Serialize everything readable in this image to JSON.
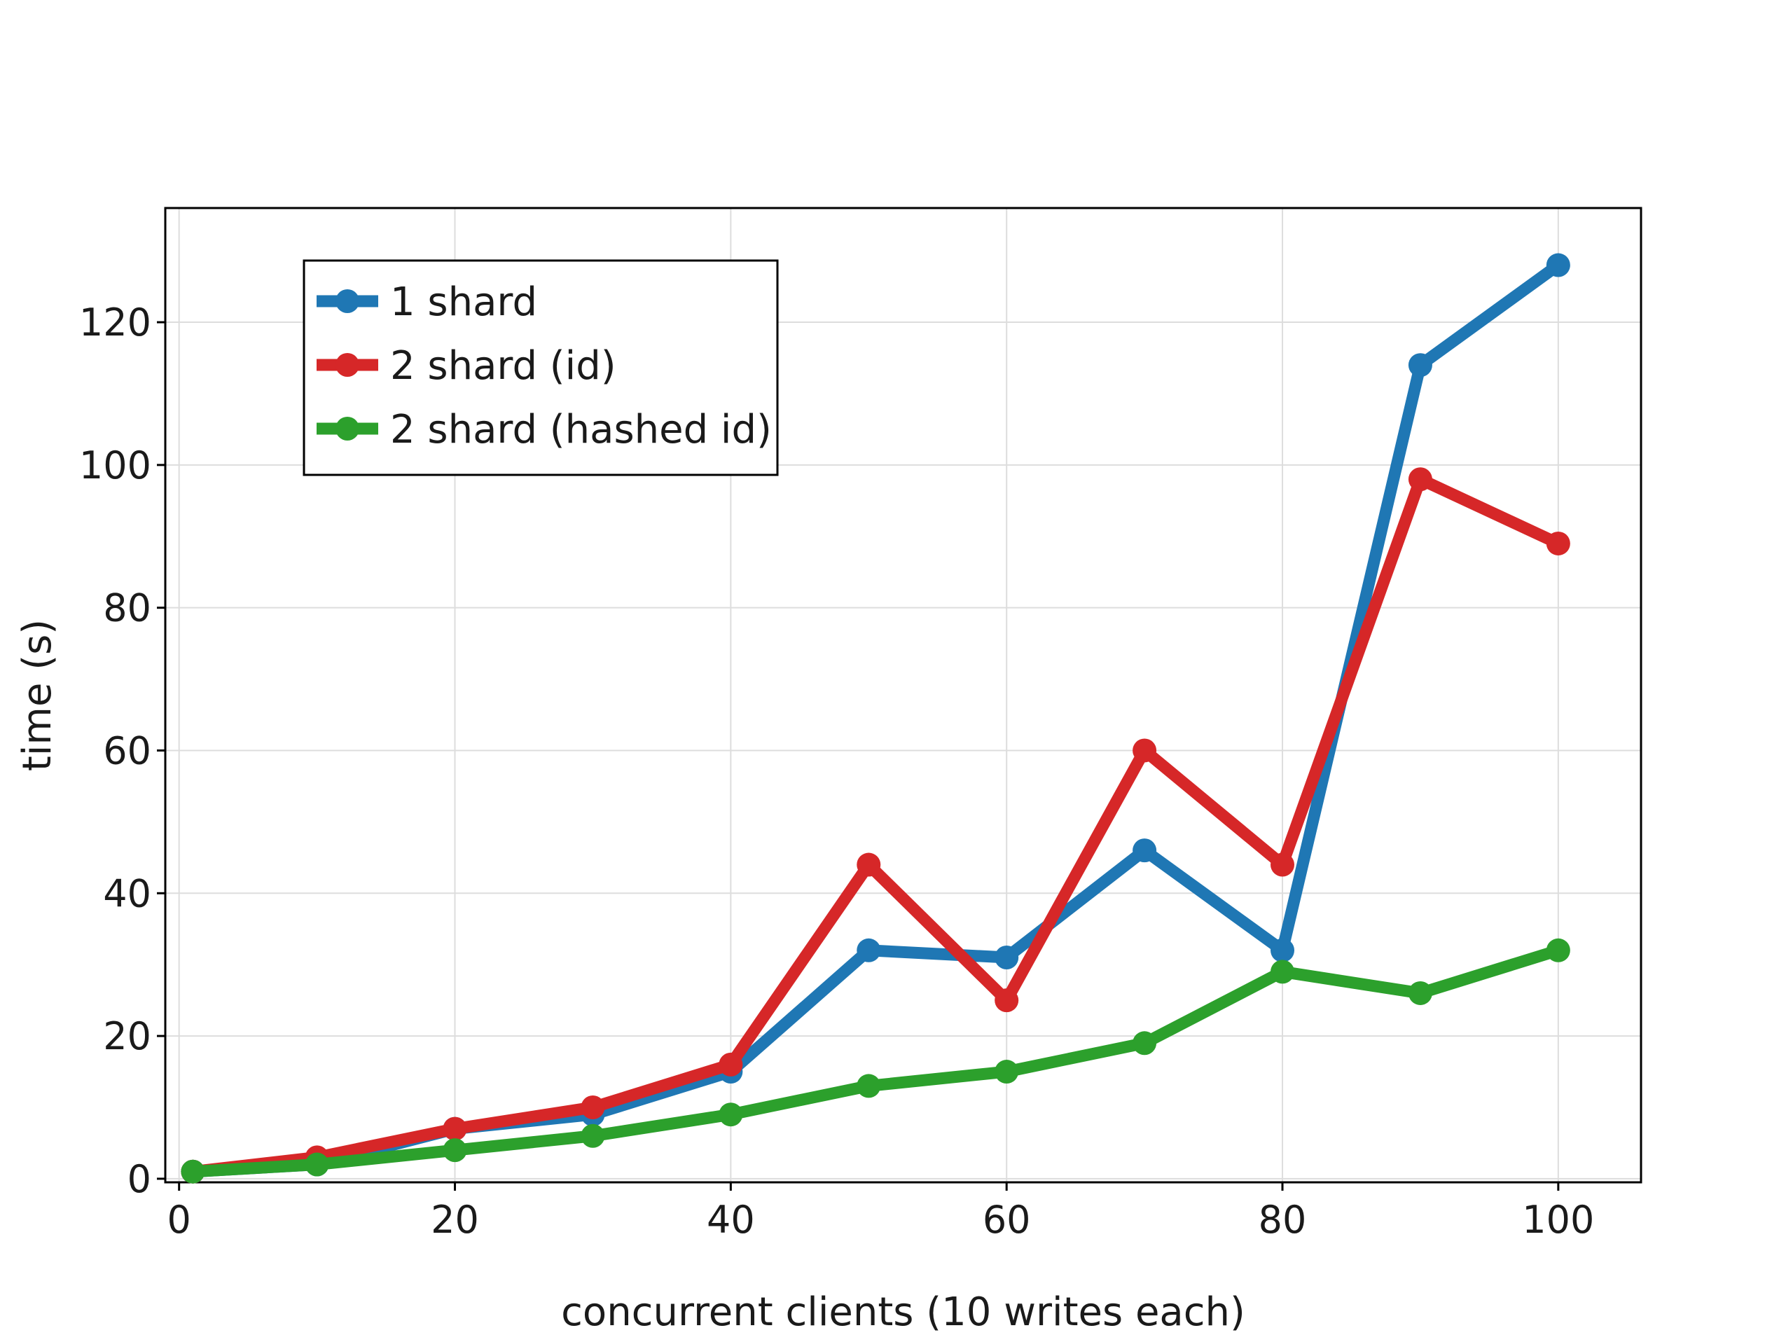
{
  "chart_data": {
    "type": "line",
    "title": "",
    "xlabel": "concurrent clients (10 writes each)",
    "ylabel": "time (s)",
    "xlim": [
      -1,
      106
    ],
    "ylim": [
      -0.5,
      136
    ],
    "grid": true,
    "legend_position": "top-left",
    "x_ticks": [
      0,
      20,
      40,
      60,
      80,
      100
    ],
    "y_ticks": [
      0,
      20,
      40,
      60,
      80,
      100,
      120
    ],
    "x_tick_labels": [
      "0",
      "20",
      "40",
      "60",
      "80",
      "100"
    ],
    "y_tick_labels": [
      "0",
      "20",
      "40",
      "60",
      "80",
      "100",
      "120"
    ],
    "x": [
      1,
      10,
      20,
      30,
      40,
      50,
      60,
      70,
      80,
      90,
      100
    ],
    "series": [
      {
        "name": "1 shard",
        "color": "#1f77b4",
        "values": [
          1,
          2,
          7,
          9,
          15,
          32,
          31,
          46,
          32,
          114,
          128
        ]
      },
      {
        "name": "2 shard (id)",
        "color": "#d62728",
        "values": [
          1,
          3,
          7,
          10,
          16,
          44,
          25,
          60,
          44,
          98,
          89
        ]
      },
      {
        "name": "2 shard (hashed id)",
        "color": "#2ca02c",
        "values": [
          1,
          2,
          4,
          6,
          9,
          13,
          15,
          19,
          29,
          26,
          32
        ]
      }
    ]
  }
}
